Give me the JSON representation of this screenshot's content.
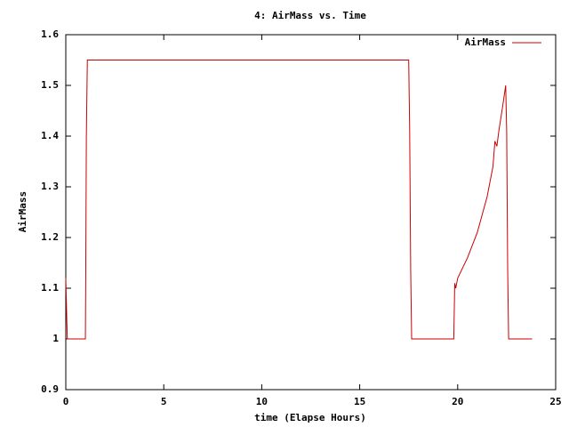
{
  "chart_data": {
    "type": "line",
    "title": "4: AirMass vs. Time",
    "x_label": "time (Elapse Hours)",
    "y_label": "AirMass",
    "x": [
      0,
      0.05,
      0.08,
      1.0,
      1.02,
      1.05,
      1.1,
      17.5,
      17.55,
      17.6,
      17.65,
      19.8,
      19.85,
      19.9,
      20.0,
      20.5,
      21.0,
      21.5,
      21.8,
      21.9,
      22.0,
      22.1,
      22.3,
      22.45,
      22.5,
      22.55,
      22.6,
      23.8
    ],
    "series": [
      {
        "name": "AirMass",
        "color": "#cc0000",
        "values": [
          1.12,
          1.04,
          1.0,
          1.0,
          1.14,
          1.4,
          1.55,
          1.55,
          1.41,
          1.14,
          1.0,
          1.0,
          1.11,
          1.1,
          1.12,
          1.16,
          1.21,
          1.28,
          1.34,
          1.39,
          1.38,
          1.41,
          1.46,
          1.5,
          1.41,
          1.14,
          1.0,
          1.0
        ]
      }
    ],
    "xlim": [
      0,
      25
    ],
    "xticks": [
      0,
      5,
      10,
      15,
      20,
      25
    ],
    "ylim": [
      0.9,
      1.6
    ],
    "yticks": [
      0.9,
      1,
      1.1,
      1.2,
      1.3,
      1.4,
      1.5,
      1.6
    ],
    "grid": false,
    "legend": "top-right"
  }
}
